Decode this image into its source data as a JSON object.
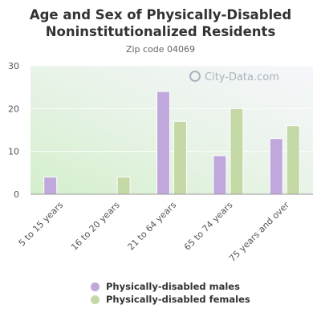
{
  "chart_data": {
    "type": "bar",
    "title": "Age and Sex of Physically-Disabled Noninstitutionalized Residents",
    "subtitle": "Zip code 04069",
    "categories": [
      "5 to 15 years",
      "16 to 20 years",
      "21 to 64 years",
      "65 to 74 years",
      "75 years and over"
    ],
    "series": [
      {
        "name": "Physically-disabled males",
        "color": "#c0a8dc",
        "values": [
          4,
          0,
          24,
          9,
          13
        ]
      },
      {
        "name": "Physically-disabled females",
        "color": "#c4d9a6",
        "values": [
          0,
          4,
          17,
          20,
          16
        ]
      }
    ],
    "ylim": [
      0,
      30
    ],
    "yticks": [
      0,
      10,
      20,
      30
    ],
    "grid": true,
    "legend_position": "bottom",
    "watermark": "City-Data.com"
  }
}
